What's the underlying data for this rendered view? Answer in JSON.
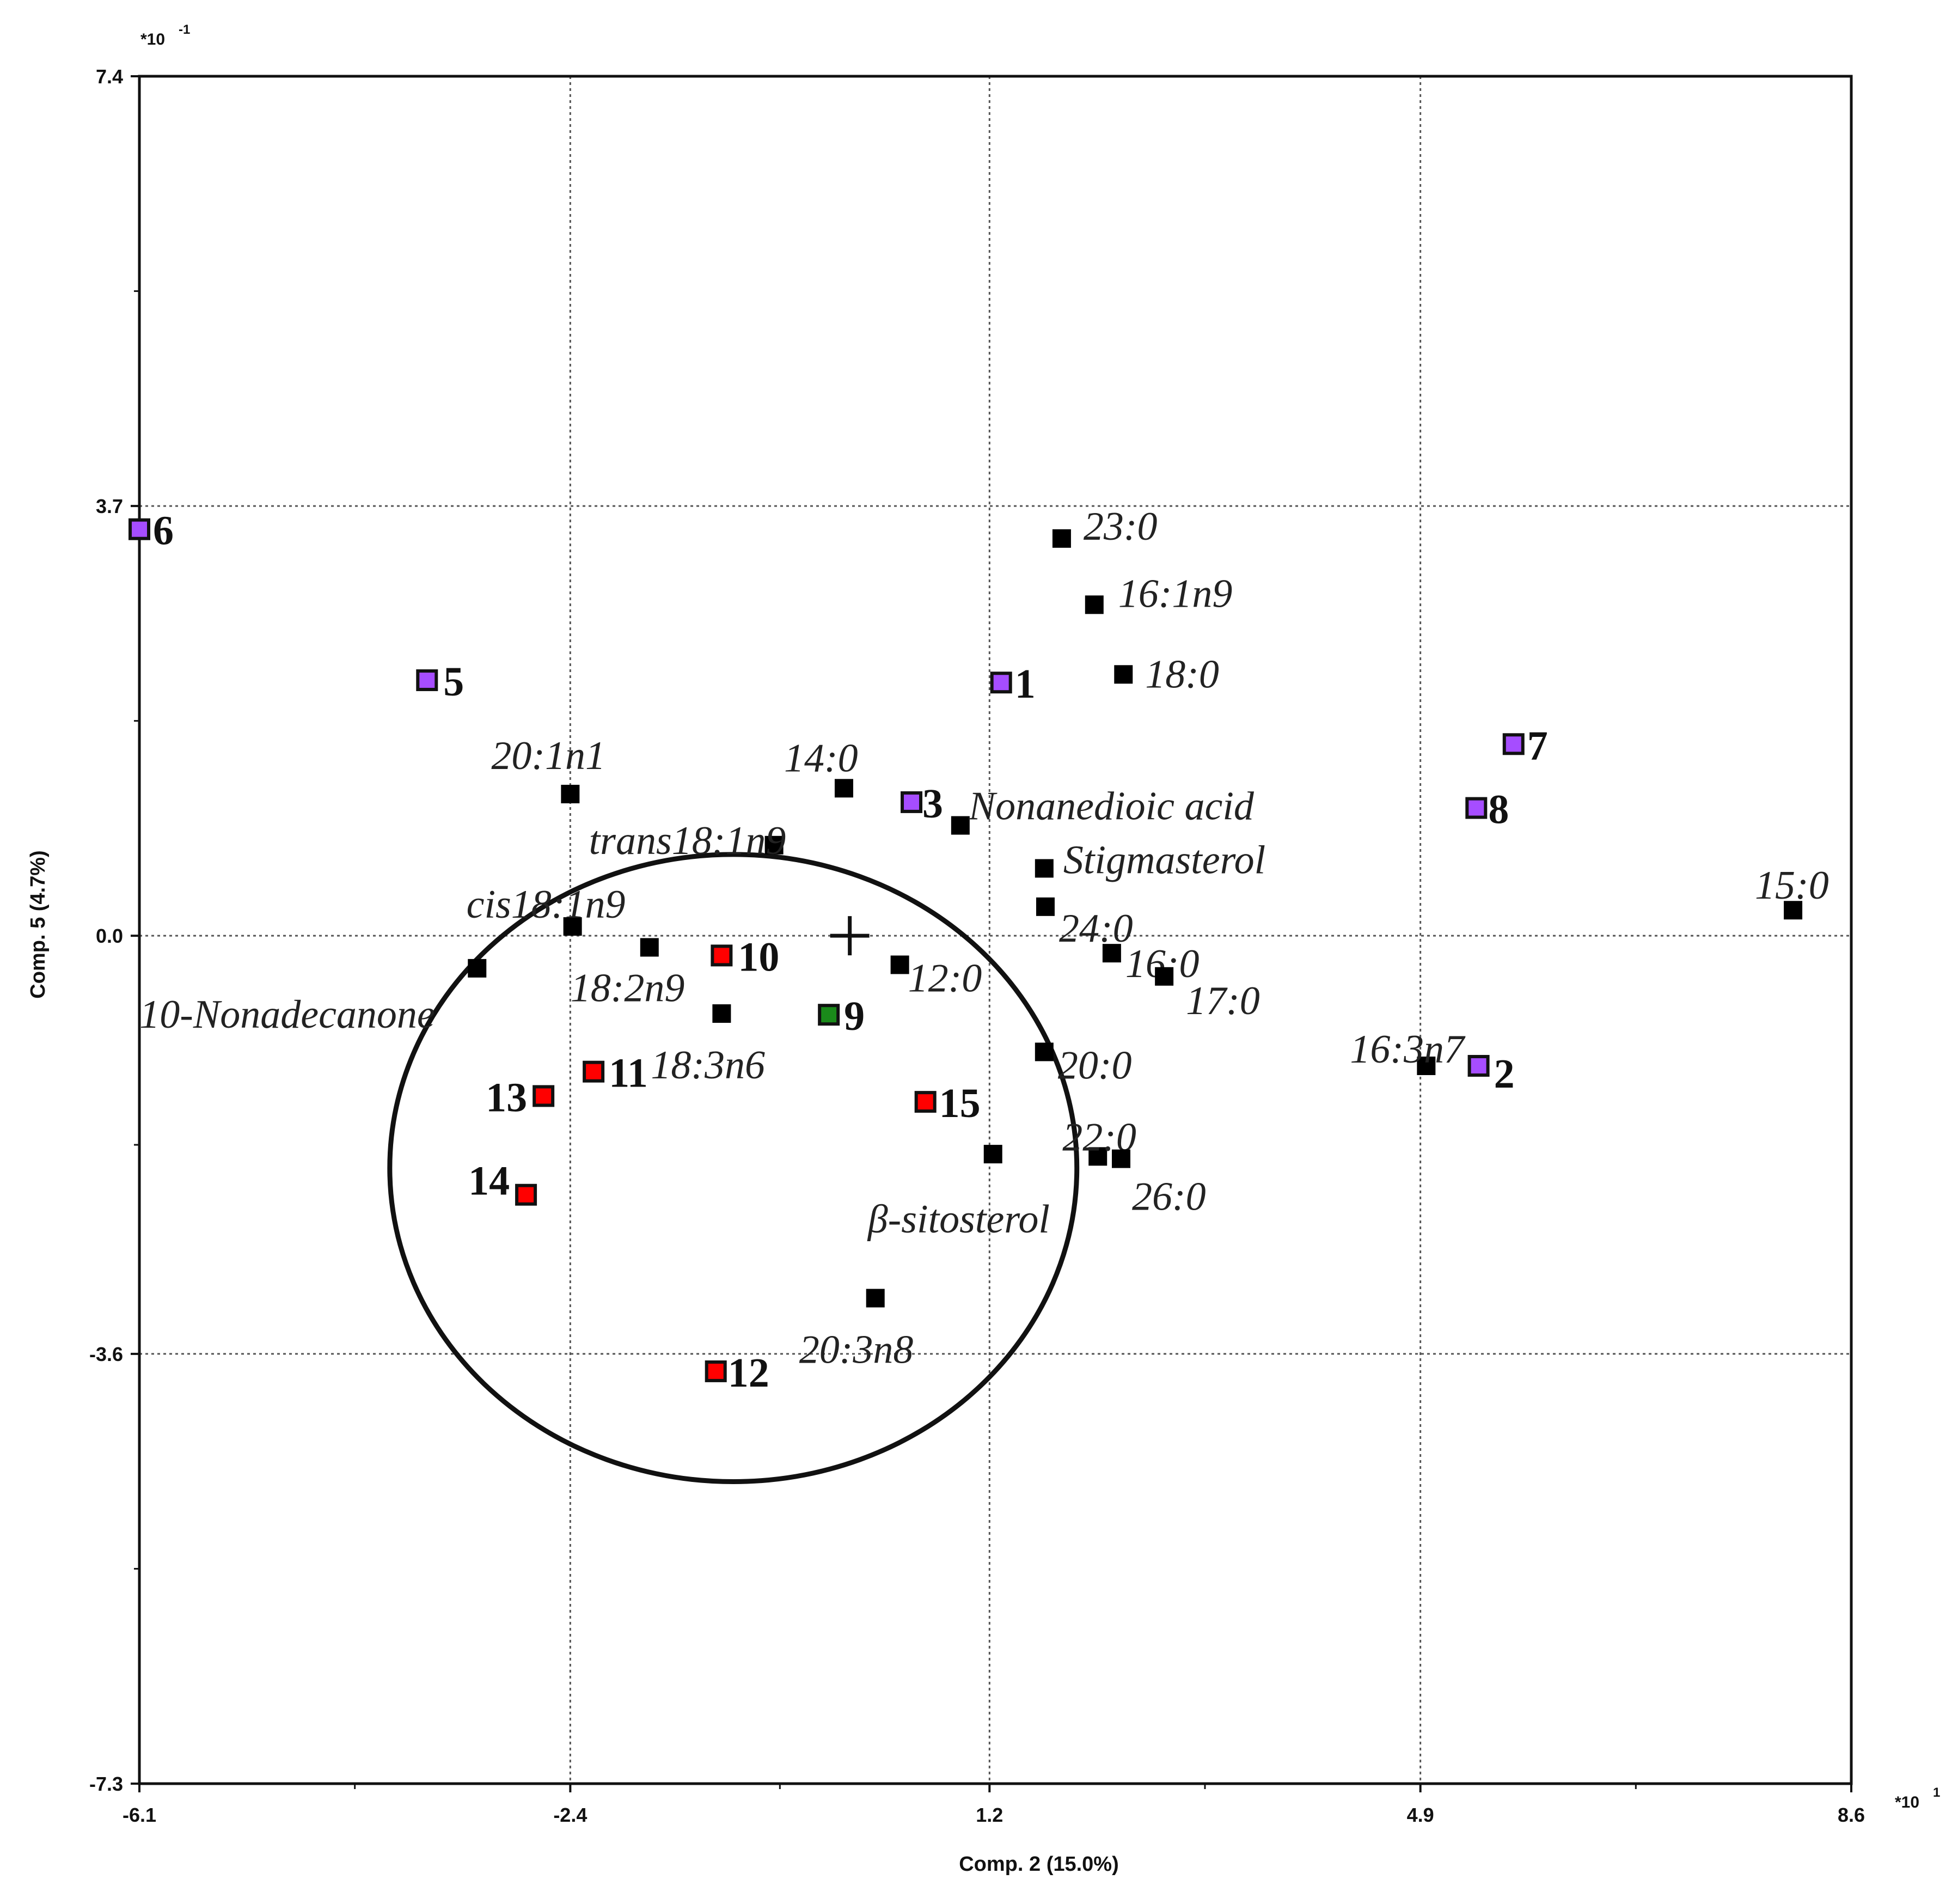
{
  "chart_data": {
    "type": "scatter",
    "xlabel": "Comp. 2 (15.0%)",
    "ylabel": "Comp. 5 (4.7%)",
    "x_multiplier_label": "*10",
    "x_multiplier_exp": "1",
    "y_multiplier_label": "*10",
    "y_multiplier_exp": "-1",
    "xlim": [
      -6.1,
      8.6
    ],
    "ylim": [
      -7.3,
      7.4
    ],
    "x_ticks": [
      "-6.1",
      "-2.4",
      "1.2",
      "4.9",
      "8.6"
    ],
    "y_ticks": [
      "-7.3",
      "-3.6",
      "0.0",
      "3.7",
      "7.4"
    ],
    "grid": true,
    "grid_x_values": [
      -2.4,
      1.2,
      4.9
    ],
    "grid_y_values": [
      -3.6,
      0.0,
      3.7
    ],
    "origin_marker": {
      "x": 0.0,
      "y": 0.0
    },
    "confidence_ellipse": {
      "cx": -1.0,
      "cy": -2.0,
      "rx": 2.95,
      "ry": 2.7
    },
    "colors": {
      "variable": "#000000",
      "purple": "#a64dff",
      "red": "#ff0000",
      "green": "#1a8a1a",
      "grid": "#555555"
    },
    "variables": [
      {
        "label": "23:0",
        "x": 1.82,
        "y": 3.42
      },
      {
        "label": "16:1n9",
        "x": 2.1,
        "y": 2.85
      },
      {
        "label": "18:0",
        "x": 2.35,
        "y": 2.25
      },
      {
        "label": "20:1n1",
        "x": -2.4,
        "y": 1.22
      },
      {
        "label": "14:0",
        "x": -0.05,
        "y": 1.27
      },
      {
        "label": "Nonanedioic acid",
        "x": 0.95,
        "y": 0.95
      },
      {
        "label": "trans18:1n9",
        "x": -0.65,
        "y": 0.78
      },
      {
        "label": "Stigmasterol",
        "x": 1.67,
        "y": 0.58
      },
      {
        "label": "24:0",
        "x": 1.68,
        "y": 0.25
      },
      {
        "label": "cis18:1n9",
        "x": -2.38,
        "y": 0.08
      },
      {
        "label": "18:2n9",
        "x": -1.72,
        "y": -0.1
      },
      {
        "label": "10-Nonadecanone",
        "x": -3.2,
        "y": -0.28
      },
      {
        "label": "12:0",
        "x": 0.43,
        "y": -0.25
      },
      {
        "label": "16:0",
        "x": 2.25,
        "y": -0.15
      },
      {
        "label": "17:0",
        "x": 2.7,
        "y": -0.35
      },
      {
        "label": "18:3n6",
        "x": -1.1,
        "y": -0.67
      },
      {
        "label": "20:0",
        "x": 1.67,
        "y": -1.0
      },
      {
        "label": "16:3n7",
        "x": 4.95,
        "y": -1.12
      },
      {
        "label": "22:0",
        "x": 2.13,
        "y": -1.9
      },
      {
        "label": "26:0",
        "x": 2.33,
        "y": -1.92
      },
      {
        "label": "β-sitosterol",
        "x": 1.23,
        "y": -1.88
      },
      {
        "label": "20:3n8",
        "x": 0.22,
        "y": -3.12
      },
      {
        "label": "15:0",
        "x": 8.1,
        "y": 0.22
      }
    ],
    "observations": [
      {
        "label": "6",
        "x": -6.1,
        "y": 3.5,
        "color": "purple"
      },
      {
        "label": "5",
        "x": -3.63,
        "y": 2.2,
        "color": "purple"
      },
      {
        "label": "1",
        "x": 1.3,
        "y": 2.18,
        "color": "purple"
      },
      {
        "label": "3",
        "x": 0.53,
        "y": 1.15,
        "color": "purple"
      },
      {
        "label": "7",
        "x": 5.7,
        "y": 1.65,
        "color": "purple"
      },
      {
        "label": "8",
        "x": 5.38,
        "y": 1.1,
        "color": "purple"
      },
      {
        "label": "2",
        "x": 5.4,
        "y": -1.12,
        "color": "purple"
      },
      {
        "label": "10",
        "x": -1.1,
        "y": -0.17,
        "color": "red"
      },
      {
        "label": "9",
        "x": -0.18,
        "y": -0.68,
        "color": "green"
      },
      {
        "label": "11",
        "x": -2.2,
        "y": -1.17,
        "color": "red"
      },
      {
        "label": "13",
        "x": -2.63,
        "y": -1.38,
        "color": "red"
      },
      {
        "label": "15",
        "x": 0.65,
        "y": -1.43,
        "color": "red"
      },
      {
        "label": "14",
        "x": -2.78,
        "y": -2.23,
        "color": "red"
      },
      {
        "label": "12",
        "x": -1.15,
        "y": -3.75,
        "color": "red"
      }
    ]
  }
}
